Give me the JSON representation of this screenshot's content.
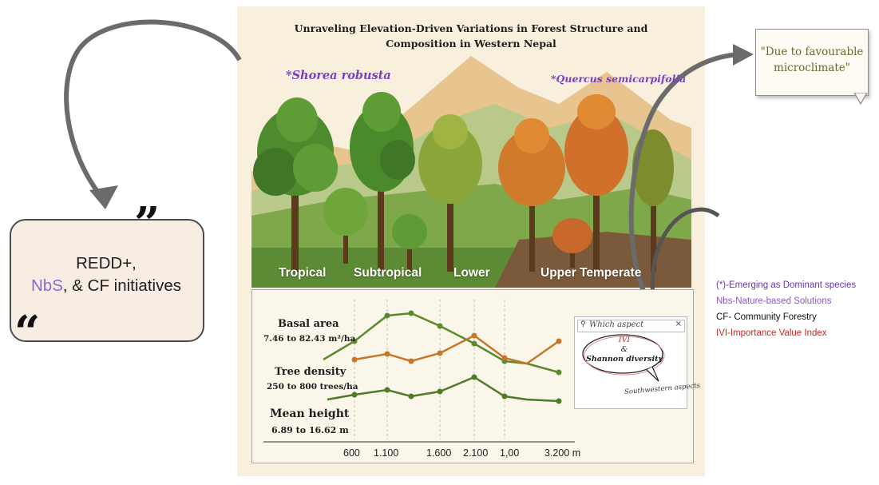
{
  "title": "Unraveling Elevation-Driven Variations in Forest Structure and Composition in Western Nepal",
  "species": [
    "*Shorea robusta",
    "*Quercus semicarpifolia"
  ],
  "zones": [
    "Tropical",
    "Subtropical",
    "Lower",
    "Upper Temperate"
  ],
  "measures": {
    "basal": {
      "label": "Basal area",
      "range": "7.46 to 82.43 m²/ha"
    },
    "density": {
      "label": "Tree density",
      "range": "250 to 800 trees/ha"
    },
    "height": {
      "label": "Mean height",
      "range": "6.89 to 16.62 m"
    }
  },
  "x_ticks": [
    "600",
    "1.100",
    "1.600",
    "2.100",
    "1,00",
    "3.200 m"
  ],
  "search_text": "Which aspect",
  "bubble": {
    "line1": "IVI",
    "line2": "&",
    "line3": "Shannon diversity"
  },
  "aspect_label": "Southwestern aspects",
  "quote_right": "\"Due to favourable microclimate\"",
  "quote_left": {
    "line1": "REDD+,",
    "nbs": "NbS",
    "line2_rest": ", & CF initiatives"
  },
  "legend": [
    "(*)-Emerging as Dominant species",
    "Nbs-Nature-based Solutions",
    "CF- Community Forestry",
    "IVI-Importance Value Index"
  ],
  "colors": {
    "green_line": "#5a8a2c",
    "orange_line": "#c4772a",
    "legend_purple": "#6a35b5",
    "legend_red": "#c62828"
  }
}
